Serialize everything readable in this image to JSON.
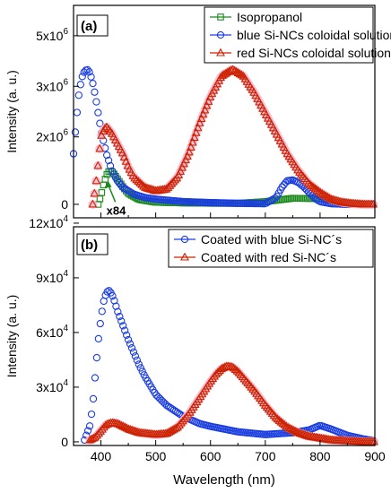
{
  "chart_data": [
    {
      "type": "scatter",
      "panel_label": "(a)",
      "ylabel": "Intensity (a. u.)",
      "xlim": [
        350,
        900
      ],
      "ylim": [
        -400000,
        5900000
      ],
      "x_ticks": [
        400,
        500,
        600,
        700,
        800,
        900
      ],
      "y_ticks": [
        {
          "value": 0,
          "mantissa": "0",
          "exponent": ""
        },
        {
          "value": 2000000,
          "mantissa": "2x10",
          "exponent": "6"
        },
        {
          "value": 3500000,
          "mantissa": "3x10",
          "exponent": "6"
        },
        {
          "value": 5000000,
          "mantissa": "5x10",
          "exponent": "6"
        }
      ],
      "legend_position": "top-right",
      "annotations": [
        {
          "text": "x84",
          "x": 410,
          "y": -40000,
          "arrow_to": [
            413,
            700000
          ]
        }
      ],
      "series": [
        {
          "name": "Isopropanol",
          "color": "#1a8a1a",
          "marker": "square",
          "x": [
            395,
            400,
            405,
            410,
            415,
            420,
            425,
            430,
            440,
            450,
            470,
            500,
            550,
            600,
            650,
            700,
            750,
            800,
            850,
            880
          ],
          "y": [
            0,
            250000,
            600000,
            860000,
            990000,
            970000,
            880000,
            760000,
            520000,
            320000,
            140000,
            60000,
            40000,
            30000,
            30000,
            80000,
            180000,
            170000,
            60000,
            10000
          ]
        },
        {
          "name": "blue Si-NCs coloidal solution",
          "color": "#1a3de0",
          "marker": "circle",
          "x": [
            350,
            355,
            360,
            365,
            370,
            375,
            380,
            385,
            390,
            395,
            400,
            410,
            420,
            430,
            440,
            460,
            480,
            500,
            550,
            600,
            650,
            700,
            720,
            730,
            740,
            750,
            760,
            770,
            780,
            790,
            800,
            820,
            850,
            880,
            900
          ],
          "y": [
            1500000,
            2500000,
            3300000,
            3750000,
            3950000,
            4000000,
            3900000,
            3600000,
            3200000,
            2700000,
            2200000,
            1500000,
            1000000,
            700000,
            500000,
            300000,
            200000,
            150000,
            80000,
            50000,
            30000,
            20000,
            200000,
            500000,
            700000,
            720000,
            650000,
            520000,
            350000,
            180000,
            80000,
            20000,
            0,
            0,
            0
          ]
        },
        {
          "name": "red Si-NCs coloidal solution",
          "color": "#cc2200",
          "marker": "triangle",
          "x": [
            385,
            390,
            395,
            400,
            405,
            410,
            420,
            430,
            440,
            450,
            460,
            480,
            500,
            520,
            540,
            560,
            580,
            600,
            620,
            640,
            660,
            680,
            700,
            720,
            740,
            760,
            780,
            800,
            820,
            840,
            860,
            880,
            900
          ],
          "y": [
            0,
            500000,
            1200000,
            2000000,
            2200000,
            2300000,
            2100000,
            1800000,
            1500000,
            1100000,
            800000,
            500000,
            400000,
            450000,
            800000,
            1500000,
            2400000,
            3200000,
            3800000,
            4000000,
            3800000,
            3300000,
            2700000,
            2100000,
            1500000,
            1000000,
            600000,
            350000,
            150000,
            60000,
            20000,
            0,
            0
          ]
        }
      ]
    },
    {
      "type": "scatter",
      "panel_label": "(b)",
      "xlabel": "Wavelength (nm)",
      "ylabel": "Intensity (a. u.)",
      "xlim": [
        350,
        900
      ],
      "ylim": [
        -2000,
        118000
      ],
      "x_ticks": [
        400,
        500,
        600,
        700,
        800,
        900
      ],
      "y_ticks": [
        {
          "value": 0,
          "mantissa": "0",
          "exponent": ""
        },
        {
          "value": 30000,
          "mantissa": "3x10",
          "exponent": "4"
        },
        {
          "value": 60000,
          "mantissa": "6x10",
          "exponent": "4"
        },
        {
          "value": 90000,
          "mantissa": "9x10",
          "exponent": "4"
        },
        {
          "value": 120000,
          "mantissa": "12x10",
          "exponent": "4"
        }
      ],
      "legend_position": "top-right",
      "series": [
        {
          "name": "Coated with blue Si-NC´s",
          "color": "#1a3de0",
          "marker": "circle",
          "x": [
            370,
            380,
            385,
            390,
            395,
            400,
            405,
            410,
            415,
            420,
            425,
            430,
            440,
            450,
            460,
            470,
            480,
            500,
            520,
            550,
            580,
            600,
            650,
            700,
            750,
            780,
            800,
            820,
            850,
            880,
            900
          ],
          "y": [
            1000,
            9000,
            20000,
            38000,
            55000,
            68000,
            77000,
            82000,
            83000,
            81000,
            77000,
            72000,
            64000,
            56000,
            49000,
            42000,
            36000,
            26000,
            20000,
            14000,
            10000,
            8500,
            5500,
            4000,
            5000,
            6500,
            9000,
            7000,
            3500,
            1500,
            500
          ]
        },
        {
          "name": "Coated with red Si-NC´s",
          "color": "#cc2200",
          "marker": "triangle",
          "x": [
            380,
            390,
            400,
            410,
            420,
            430,
            440,
            450,
            470,
            500,
            520,
            540,
            560,
            580,
            600,
            610,
            620,
            630,
            640,
            650,
            660,
            680,
            700,
            720,
            740,
            760,
            780,
            800,
            820,
            850,
            880,
            900
          ],
          "y": [
            1000,
            2500,
            6000,
            9500,
            10500,
            10000,
            8500,
            7000,
            5000,
            4000,
            4500,
            8000,
            15000,
            24000,
            33000,
            37000,
            40000,
            41500,
            41000,
            38500,
            35000,
            28000,
            20000,
            13000,
            8000,
            5000,
            3000,
            2000,
            1000,
            500,
            0,
            0
          ]
        }
      ]
    }
  ]
}
